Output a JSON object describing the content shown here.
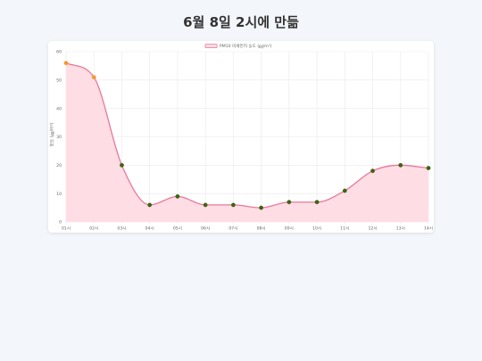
{
  "page": {
    "title": "6월 8일 2시에 만듦"
  },
  "colors": {
    "line": "#e8799a",
    "fill": "#ffdde4",
    "point_normal": "#3e6312",
    "point_high": "#f29a2e",
    "grid": "#e9e9e9"
  },
  "chart_data": {
    "type": "area",
    "title": "",
    "legend": [
      "PM10 미세먼지 농도 (㎍/m³)"
    ],
    "legend_position": "top",
    "xlabel": "",
    "ylabel": "농도 (㎍/m³)",
    "ylim": [
      0,
      60
    ],
    "yticks": [
      0,
      10,
      20,
      30,
      40,
      50,
      60
    ],
    "grid": true,
    "categories": [
      "01시",
      "02시",
      "03시",
      "04시",
      "05시",
      "06시",
      "07시",
      "08시",
      "09시",
      "10시",
      "11시",
      "12시",
      "13시",
      "14시"
    ],
    "series": [
      {
        "name": "PM10 미세먼지 농도 (㎍/m³)",
        "values": [
          56,
          51,
          20,
          6,
          9,
          6,
          6,
          5,
          7,
          7,
          11,
          18,
          20,
          19
        ],
        "point_colors": [
          "#f29a2e",
          "#f29a2e",
          "#3e6312",
          "#3e6312",
          "#3e6312",
          "#3e6312",
          "#3e6312",
          "#3e6312",
          "#3e6312",
          "#3e6312",
          "#3e6312",
          "#3e6312",
          "#3e6312",
          "#3e6312"
        ]
      }
    ]
  }
}
